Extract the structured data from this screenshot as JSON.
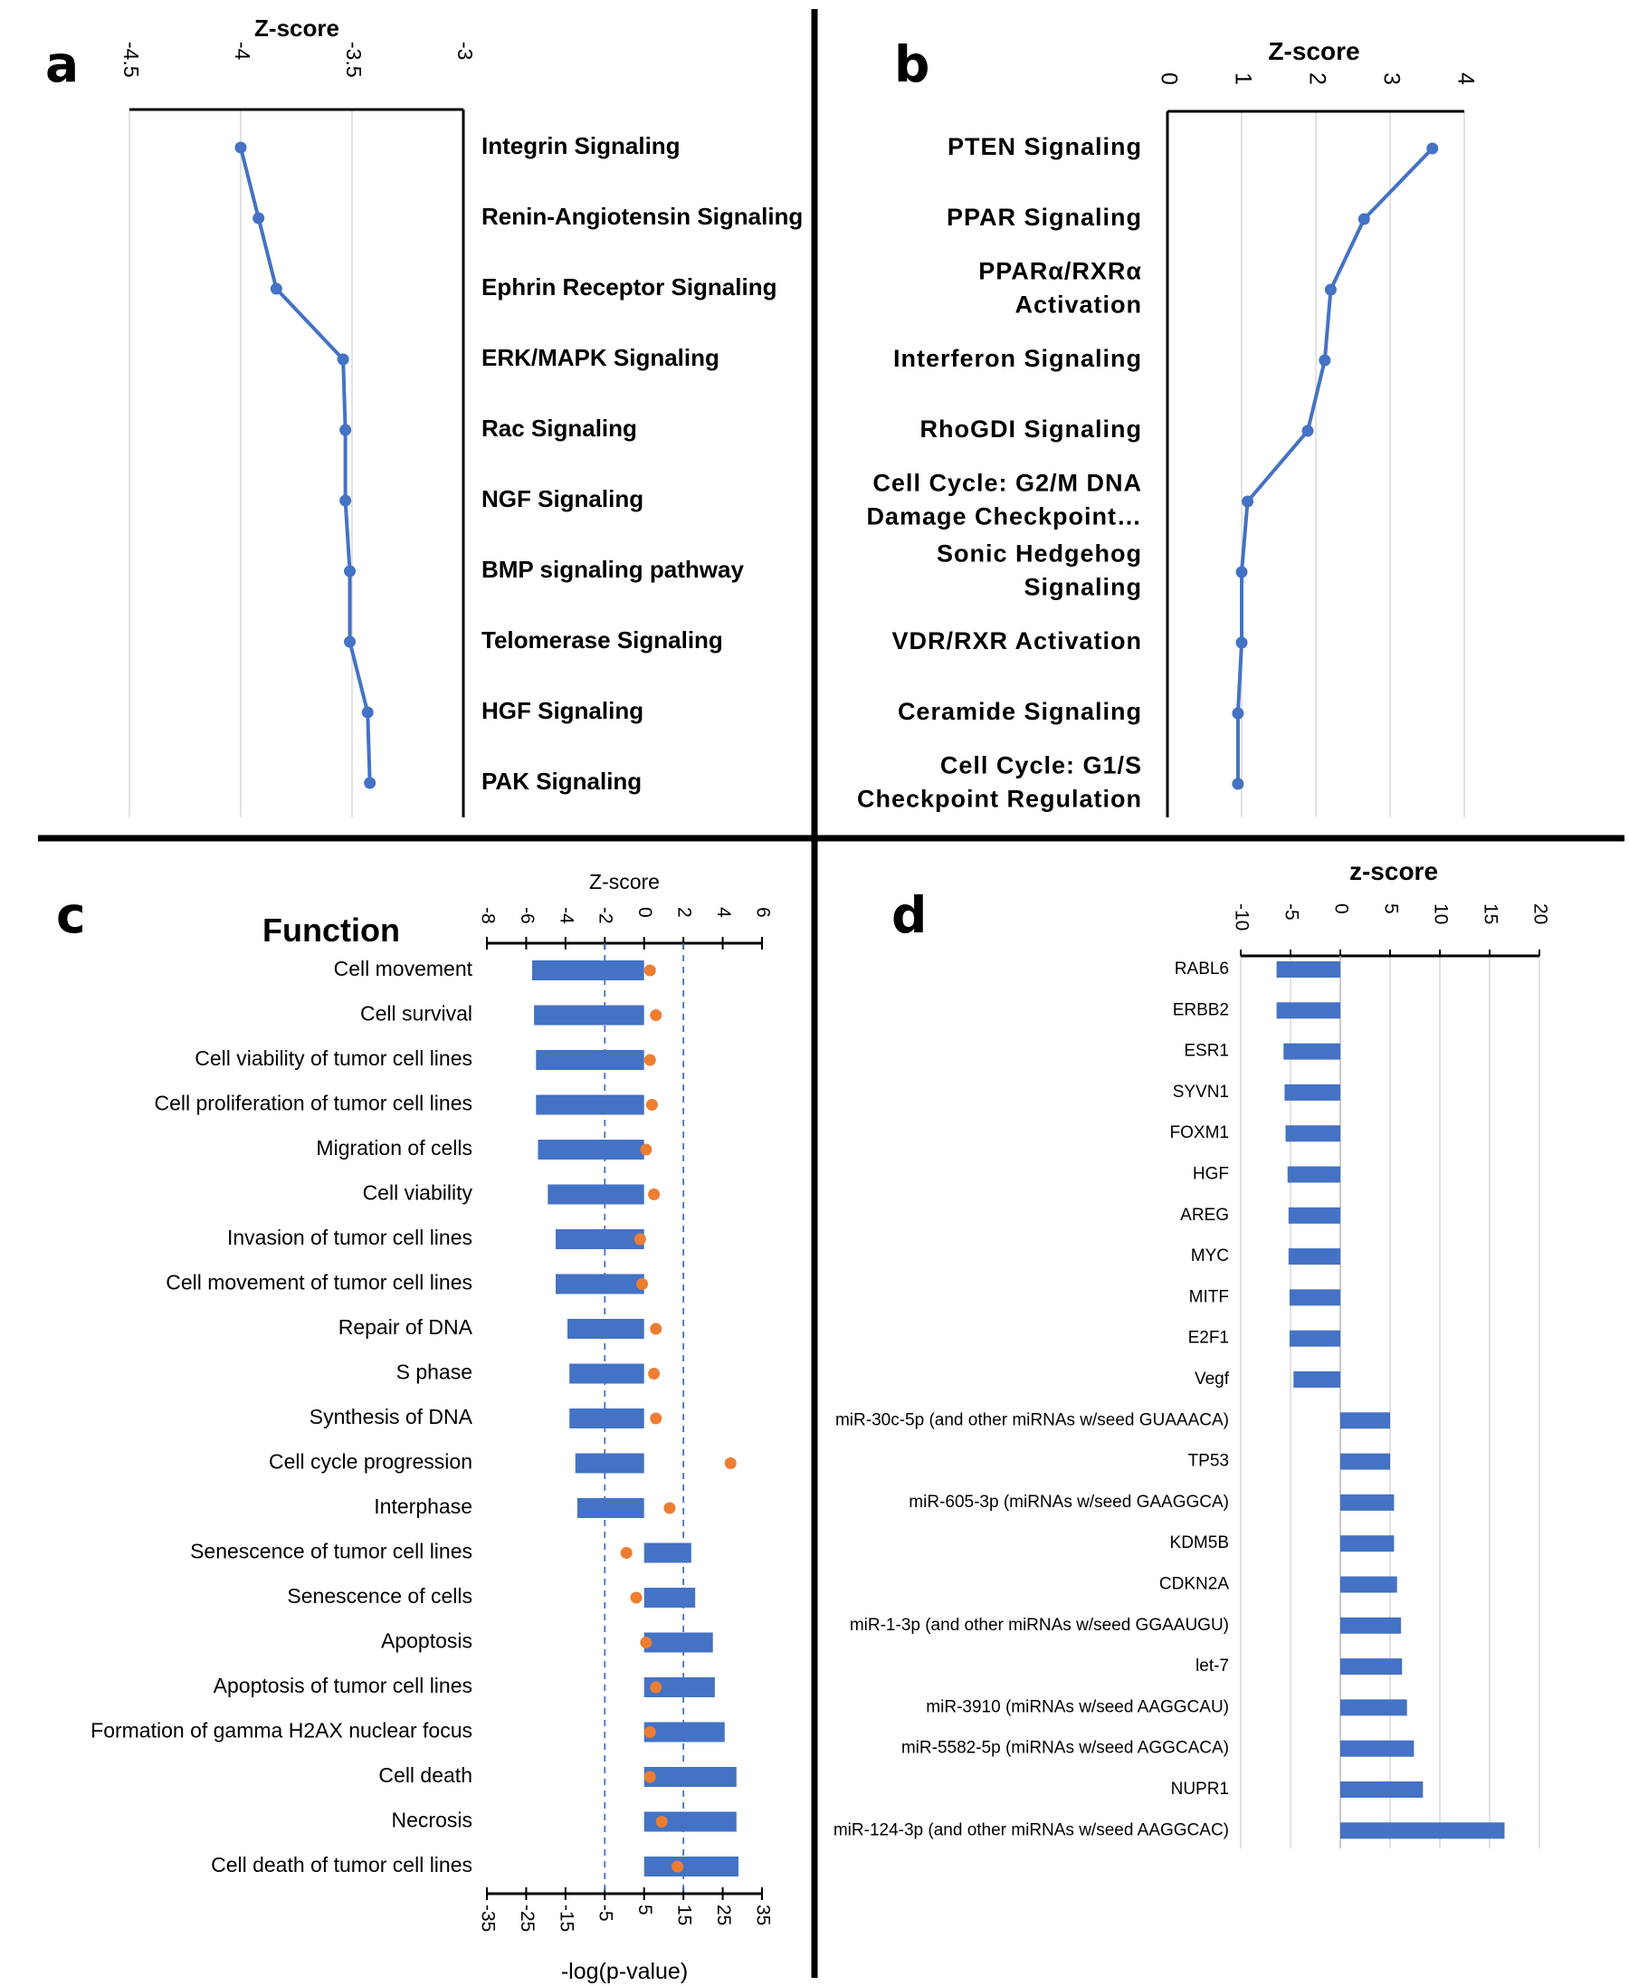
{
  "chart_data": [
    {
      "panel": "a",
      "type": "line",
      "xlabel": "Z-score",
      "xlim": [
        -4.5,
        -3
      ],
      "ticks": [
        -4.5,
        -4,
        -3.5,
        -3
      ],
      "categories": [
        "Integrin Signaling",
        "Renin-Angiotensin Signaling",
        "Ephrin Receptor Signaling",
        "ERK/MAPK Signaling",
        "Rac Signaling",
        "NGF Signaling",
        "BMP signaling pathway",
        "Telomerase Signaling",
        "HGF Signaling",
        "PAK Signaling"
      ],
      "values": [
        -4.0,
        -3.92,
        -3.84,
        -3.54,
        -3.53,
        -3.53,
        -3.51,
        -3.51,
        -3.43,
        -3.42
      ],
      "color": "#4472c4"
    },
    {
      "panel": "b",
      "type": "line",
      "xlabel": "Z-score",
      "xlim": [
        0,
        4
      ],
      "ticks": [
        0,
        1,
        2,
        3,
        4
      ],
      "categories": [
        [
          "PTEN Signaling"
        ],
        [
          "PPAR Signaling"
        ],
        [
          "PPARα/RXRα",
          "Activation"
        ],
        [
          "Interferon Signaling"
        ],
        [
          "RhoGDI Signaling"
        ],
        [
          "Cell Cycle: G2/M DNA",
          "Damage Checkpoint…"
        ],
        [
          "Sonic Hedgehog",
          "Signaling"
        ],
        [
          "VDR/RXR Activation"
        ],
        [
          "Ceramide Signaling"
        ],
        [
          "Cell Cycle: G1/S",
          "Checkpoint Regulation"
        ]
      ],
      "values": [
        3.57,
        2.65,
        2.2,
        2.12,
        1.89,
        1.08,
        1.0,
        1.0,
        0.95,
        0.95
      ],
      "color": "#4472c4"
    },
    {
      "panel": "c",
      "type": "bar",
      "title": "Function",
      "xlabel_top": "Z-score",
      "xlabel_bottom": "-log(p-value)",
      "zlim": [
        -8,
        6
      ],
      "zticks": [
        -8,
        -6,
        -4,
        -2,
        0,
        2,
        4,
        6
      ],
      "plim": [
        -35,
        35
      ],
      "pticks": [
        -35,
        -25,
        -15,
        -5,
        5,
        15,
        25,
        35
      ],
      "threshold_lines_z": [
        -2,
        2
      ],
      "categories": [
        "Cell movement",
        "Cell survival",
        "Cell viability of tumor cell lines",
        "Cell proliferation of tumor cell lines",
        "Migration of cells",
        "Cell viability",
        "Invasion of tumor cell lines",
        "Cell movement of tumor cell lines",
        "Repair of DNA",
        "S phase",
        "Synthesis of DNA",
        "Cell cycle progression",
        "Interphase",
        "Senescence of tumor cell lines",
        "Senescence of cells",
        "Apoptosis",
        "Apoptosis of tumor cell lines",
        "Formation of gamma H2AX nuclear focus",
        "Cell death",
        "Necrosis",
        "Cell death of tumor cell lines"
      ],
      "series": [
        {
          "name": "Z-score",
          "color": "#4472c4",
          "values": [
            -5.7,
            -5.6,
            -5.5,
            -5.5,
            -5.4,
            -4.9,
            -4.5,
            -4.5,
            -3.9,
            -3.8,
            -3.8,
            -3.5,
            -3.4,
            2.4,
            2.6,
            3.5,
            3.6,
            4.1,
            4.7,
            4.7,
            4.8
          ]
        },
        {
          "name": "-log(p-value)",
          "color": "#ed7d31",
          "values": [
            6.5,
            8,
            6.5,
            7,
            5.5,
            7.5,
            4,
            4.5,
            8,
            7.5,
            8,
            27,
            11.5,
            0.5,
            3,
            5.5,
            8,
            6.5,
            6.5,
            9.5,
            13.5
          ]
        }
      ]
    },
    {
      "panel": "d",
      "type": "bar",
      "xlabel": "z-score",
      "xlim": [
        -10,
        20
      ],
      "ticks": [
        -10,
        -5,
        0,
        5,
        10,
        15,
        20
      ],
      "categories": [
        "RABL6",
        "ERBB2",
        "ESR1",
        "SYVN1",
        "FOXM1",
        "HGF",
        "AREG",
        "MYC",
        "MITF",
        "E2F1",
        "Vegf",
        "miR-30c-5p (and other miRNAs w/seed GUAAACA)",
        "TP53",
        "miR-605-3p (miRNAs w/seed GAAGGCA)",
        "KDM5B",
        "CDKN2A",
        "miR-1-3p (and other miRNAs w/seed GGAAUGU)",
        "let-7",
        "miR-3910 (miRNAs w/seed AAGGCAU)",
        "miR-5582-5p (miRNAs w/seed AGGCACA)",
        "NUPR1",
        "miR-124-3p (and other miRNAs w/seed AAGGCAC)"
      ],
      "values": [
        -6.4,
        -6.4,
        -5.7,
        -5.6,
        -5.5,
        -5.3,
        -5.2,
        -5.2,
        -5.1,
        -5.1,
        -4.7,
        5.0,
        5.0,
        5.4,
        5.4,
        5.7,
        6.1,
        6.2,
        6.7,
        7.4,
        8.3,
        16.5
      ],
      "color": "#4472c4"
    }
  ],
  "panel_letters": {
    "a": "a",
    "b": "b",
    "c": "c",
    "d": "d"
  }
}
